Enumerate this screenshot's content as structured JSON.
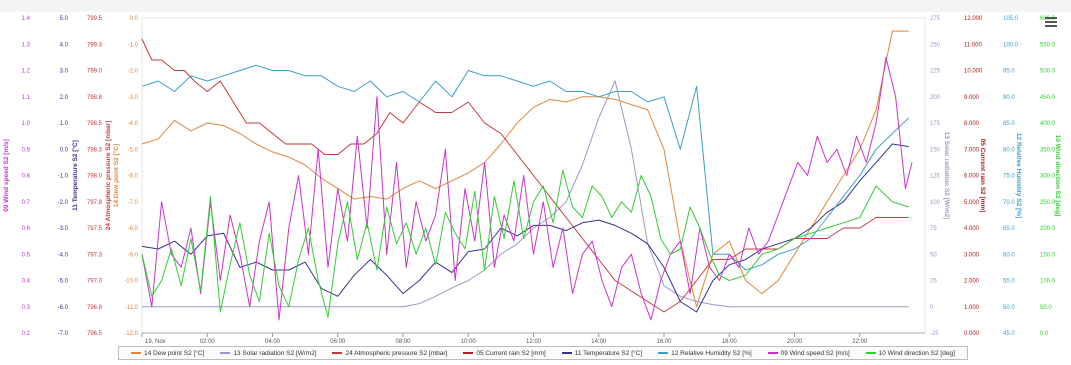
{
  "icons": {
    "menu": "hamburger-menu-icon"
  },
  "chart_data": {
    "type": "line",
    "x_start": "19. Nov",
    "x_ticks": [
      "19. Nov",
      "02:00",
      "04:00",
      "06:00",
      "08:00",
      "10:00",
      "12:00",
      "14:00",
      "16:00",
      "18:00",
      "20:00",
      "22:00"
    ],
    "x_range_hours": [
      0,
      24
    ],
    "axes": [
      {
        "id": "ws",
        "side": "left",
        "title": "09 Wind speed S2 [m/s]",
        "color": "#cc33cc",
        "min": 0.2,
        "max": 1.4,
        "ticks": [
          "1.4",
          "1.3",
          "1.2",
          "1.1",
          "1.0",
          "0.9",
          "0.8",
          "0.7",
          "0.6",
          "0.5",
          "0.4",
          "0.3",
          "0.2"
        ]
      },
      {
        "id": "temp",
        "side": "left",
        "title": "11 Temperature S2 [°C]",
        "color": "#33338f",
        "min": -7,
        "max": 5,
        "ticks": [
          "5.0",
          "4.0",
          "3.0",
          "2.0",
          "1.0",
          "0.0",
          "-1.0",
          "-2.0",
          "-3.0",
          "-4.0",
          "-5.0",
          "-6.0",
          "-7.0"
        ]
      },
      {
        "id": "atm",
        "side": "left",
        "title": "24 Atmospheric pressure S2 [mbar]",
        "color": "#c33a3a",
        "min": 796.5,
        "max": 799.5,
        "ticks": [
          "799.5",
          "799.3",
          "799.0",
          "798.8",
          "798.5",
          "798.3",
          "798.0",
          "797.8",
          "797.5",
          "797.3",
          "797.0",
          "796.8",
          "796.5"
        ]
      },
      {
        "id": "dew",
        "side": "left",
        "title": "14 Dew point S2 [°C]",
        "color": "#e0883a",
        "min": -12,
        "max": 0,
        "ticks": [
          "0.0",
          "-1.0",
          "-2.0",
          "-3.0",
          "-4.0",
          "-5.0",
          "-6.0",
          "-7.0",
          "-8.0",
          "-9.0",
          "-10.0",
          "-11.0",
          "-12.0"
        ]
      },
      {
        "id": "sol",
        "side": "right",
        "title": "13 Solar radiation S2 [W/m2]",
        "color": "#9a9ac8",
        "min": -25,
        "max": 275,
        "ticks": [
          "275",
          "250",
          "225",
          "200",
          "175",
          "150",
          "125",
          "100",
          "75",
          "50",
          "25",
          "0",
          "-25"
        ]
      },
      {
        "id": "rain",
        "side": "right",
        "title": "05 Current rain S2 [mm]",
        "color": "#aa2020",
        "min": 0,
        "max": 12,
        "ticks": [
          "12.000",
          "11.000",
          "10.000",
          "9.000",
          "8.000",
          "7.000",
          "6.000",
          "5.000",
          "4.000",
          "3.000",
          "2.000",
          "1.000",
          "0.000"
        ]
      },
      {
        "id": "rh",
        "side": "right",
        "title": "12 Relative Humidity S2 [%]",
        "color": "#3a9ec8",
        "min": 45,
        "max": 105,
        "ticks": [
          "105.0",
          "100.0",
          "95.0",
          "90.0",
          "85.0",
          "80.0",
          "75.0",
          "70.0",
          "65.0",
          "60.0",
          "55.0",
          "50.0",
          "45.0"
        ]
      },
      {
        "id": "wd",
        "side": "right",
        "title": "10 Wind direction S2 [deg]",
        "color": "#33cc33",
        "min": 0,
        "max": 600,
        "ticks": [
          "600.0",
          "550.0",
          "500.0",
          "450.0",
          "400.0",
          "350.0",
          "300.0",
          "250.0",
          "200.0",
          "150.0",
          "100.0",
          "50.0",
          "0.0"
        ]
      }
    ],
    "series": [
      {
        "name": "14 Dew point S2 [°C]",
        "axis": "dew",
        "color": "#e0883a",
        "x": [
          0,
          0.5,
          1,
          1.5,
          2,
          2.5,
          3,
          3.5,
          4,
          4.5,
          5,
          5.5,
          6,
          6.5,
          7,
          7.5,
          8,
          8.5,
          9,
          9.5,
          10,
          10.5,
          11,
          11.5,
          12,
          12.5,
          13,
          13.5,
          14,
          14.5,
          15,
          15.5,
          16,
          16.5,
          17,
          17.5,
          18,
          18.5,
          19,
          19.5,
          20,
          20.5,
          21,
          21.5,
          22,
          22.5,
          23,
          23.5
        ],
        "values": [
          -4.8,
          -4.6,
          -3.9,
          -4.3,
          -4.0,
          -4.1,
          -4.4,
          -4.8,
          -5.1,
          -5.3,
          -5.6,
          -6.1,
          -6.5,
          -6.9,
          -6.8,
          -6.9,
          -6.5,
          -6.2,
          -6.5,
          -6.2,
          -5.9,
          -5.5,
          -4.8,
          -4.0,
          -3.4,
          -3.1,
          -3.2,
          -3.0,
          -3.0,
          -3.1,
          -3.3,
          -3.5,
          -5.0,
          -8.5,
          -11.0,
          -9.0,
          -8.5,
          -10.0,
          -10.5,
          -10.0,
          -9.0,
          -8.0,
          -7.0,
          -6.0,
          -5.0,
          -3.5,
          -0.5,
          -0.5
        ]
      },
      {
        "name": "13 Solar radiation S2 [W/m2]",
        "axis": "sol",
        "color": "#9a9ac8",
        "x": [
          0,
          1,
          2,
          3,
          4,
          5,
          6,
          7,
          8,
          8.5,
          9,
          9.5,
          10,
          10.5,
          11,
          11.5,
          12,
          12.5,
          13,
          13.5,
          14,
          14.5,
          15,
          15.5,
          16,
          16.5,
          17,
          17.5,
          18,
          19,
          20,
          21,
          22,
          23,
          23.5
        ],
        "values": [
          0,
          0,
          0,
          0,
          0,
          0,
          0,
          0,
          0,
          3,
          10,
          18,
          25,
          35,
          50,
          60,
          75,
          85,
          100,
          135,
          180,
          215,
          150,
          60,
          20,
          10,
          5,
          2,
          0,
          0,
          0,
          0,
          0,
          0,
          0
        ]
      },
      {
        "name": "24 Atmospheric pressure S2 [mbar]",
        "axis": "atm",
        "color": "#c33a3a",
        "x": [
          0,
          0.3,
          0.6,
          1,
          1.3,
          1.6,
          2,
          2.4,
          2.8,
          3.2,
          3.6,
          4,
          4.4,
          4.8,
          5.2,
          5.6,
          6,
          6.4,
          6.8,
          7.2,
          7.6,
          8,
          8.5,
          9,
          9.5,
          10,
          10.5,
          11,
          11.5,
          12,
          12.5,
          13,
          13.5,
          14,
          14.5,
          15,
          15.5,
          16,
          16.5,
          17,
          17.5,
          18,
          18.5,
          19,
          19.5,
          20,
          20.5,
          21,
          21.5,
          22,
          22.5,
          23,
          23.5
        ],
        "values": [
          799.3,
          799.1,
          799.1,
          799.0,
          799.0,
          798.9,
          798.8,
          798.9,
          798.7,
          798.5,
          798.5,
          798.4,
          798.3,
          798.3,
          798.3,
          798.2,
          798.2,
          798.3,
          798.3,
          798.4,
          798.6,
          798.5,
          798.7,
          798.6,
          798.6,
          798.7,
          798.5,
          798.4,
          798.2,
          798.0,
          797.8,
          797.6,
          797.4,
          797.2,
          797.0,
          796.9,
          796.8,
          796.7,
          796.8,
          797.0,
          797.2,
          797.2,
          797.3,
          797.3,
          797.3,
          797.4,
          797.4,
          797.4,
          797.5,
          797.5,
          797.6,
          797.6,
          797.6
        ]
      },
      {
        "name": "05 Current rain S2 [mm]",
        "axis": "rain",
        "color": "#aa2020",
        "x": [
          0,
          2,
          4,
          6,
          8,
          10,
          12,
          14,
          16,
          16.5,
          17,
          17.5,
          18,
          20,
          22,
          23.5
        ],
        "values": [
          0,
          0,
          0,
          0,
          0,
          0,
          0,
          0,
          0,
          0,
          0,
          0,
          0,
          0,
          0,
          0
        ]
      },
      {
        "name": "11 Temperature S2 [°C]",
        "axis": "temp",
        "color": "#33338f",
        "x": [
          0,
          0.5,
          1,
          1.5,
          2,
          2.5,
          3,
          3.5,
          4,
          4.5,
          5,
          5.5,
          6,
          6.5,
          7,
          7.5,
          8,
          8.5,
          9,
          9.5,
          10,
          10.5,
          11,
          11.5,
          12,
          12.5,
          13,
          13.5,
          14,
          14.5,
          15,
          15.5,
          16,
          16.5,
          17,
          17.5,
          18,
          18.5,
          19,
          19.5,
          20,
          20.5,
          21,
          21.5,
          22,
          22.5,
          23,
          23.5
        ],
        "values": [
          -3.7,
          -3.8,
          -3.5,
          -4.0,
          -3.3,
          -3.2,
          -4.5,
          -4.3,
          -4.6,
          -4.6,
          -4.3,
          -5.3,
          -5.6,
          -4.8,
          -4.2,
          -4.8,
          -5.5,
          -5.0,
          -4.3,
          -4.7,
          -3.9,
          -3.8,
          -3.0,
          -3.3,
          -2.9,
          -2.9,
          -3.1,
          -2.8,
          -2.7,
          -2.9,
          -3.2,
          -3.6,
          -4.5,
          -5.8,
          -6.2,
          -5.0,
          -4.4,
          -4.2,
          -3.8,
          -3.6,
          -3.4,
          -3.0,
          -2.4,
          -2.0,
          -1.2,
          -0.5,
          0.2,
          0.1
        ]
      },
      {
        "name": "12 Relative Humidity S2 [%]",
        "axis": "rh",
        "color": "#3a9ec8",
        "x": [
          0,
          0.5,
          1,
          1.5,
          2,
          2.5,
          3,
          3.5,
          4,
          4.5,
          5,
          5.5,
          6,
          6.5,
          7,
          7.5,
          8,
          8.5,
          9,
          9.5,
          10,
          10.5,
          11,
          11.5,
          12,
          12.5,
          13,
          13.5,
          14,
          14.5,
          15,
          15.5,
          16,
          16.5,
          17,
          17.5,
          18,
          18.5,
          19,
          19.5,
          20,
          20.5,
          21,
          21.5,
          22,
          22.5,
          23,
          23.5
        ],
        "values": [
          92,
          93,
          91,
          94,
          93,
          94,
          95,
          96,
          95,
          95,
          94,
          94,
          92,
          91,
          93,
          90,
          91,
          89,
          93,
          90,
          95,
          94,
          94,
          93,
          92,
          93,
          91,
          91,
          90,
          91,
          91,
          89,
          90,
          80,
          92,
          60,
          60,
          57,
          58,
          60,
          61,
          63,
          67,
          71,
          75,
          80,
          83,
          86
        ]
      },
      {
        "name": "09 Wind speed S2 [m/s]",
        "axis": "ws",
        "color": "#cc33cc",
        "x": [
          0,
          0.3,
          0.6,
          0.9,
          1.2,
          1.5,
          1.8,
          2.1,
          2.4,
          2.7,
          3,
          3.3,
          3.6,
          3.9,
          4.2,
          4.5,
          4.8,
          5.1,
          5.4,
          5.7,
          6,
          6.3,
          6.6,
          6.9,
          7.2,
          7.5,
          7.8,
          8.1,
          8.4,
          8.7,
          9,
          9.3,
          9.6,
          9.9,
          10.2,
          10.5,
          10.8,
          11.1,
          11.4,
          11.7,
          12,
          12.3,
          12.6,
          12.9,
          13.2,
          13.5,
          13.8,
          14.1,
          14.4,
          14.7,
          15,
          15.3,
          15.6,
          15.9,
          16.2,
          16.5,
          16.8,
          17.1,
          17.4,
          17.7,
          18,
          18.3,
          18.6,
          18.9,
          19.2,
          19.5,
          19.8,
          20.1,
          20.4,
          20.7,
          21,
          21.3,
          21.6,
          21.9,
          22.2,
          22.5,
          22.8,
          23.1,
          23.4,
          23.6
        ],
        "values": [
          0.5,
          0.3,
          0.7,
          0.5,
          0.45,
          0.6,
          0.35,
          0.7,
          0.4,
          0.65,
          0.5,
          0.3,
          0.55,
          0.7,
          0.25,
          0.6,
          0.8,
          0.5,
          0.9,
          0.45,
          0.75,
          0.55,
          0.95,
          0.6,
          1.1,
          0.5,
          0.85,
          0.45,
          0.7,
          0.55,
          0.65,
          0.9,
          0.4,
          0.75,
          0.55,
          0.85,
          0.45,
          0.65,
          0.55,
          0.8,
          0.5,
          0.7,
          0.45,
          0.6,
          0.35,
          0.5,
          0.55,
          0.4,
          0.3,
          0.45,
          0.5,
          0.35,
          0.25,
          0.4,
          0.5,
          0.55,
          0.35,
          0.6,
          0.45,
          0.4,
          0.5,
          0.45,
          0.6,
          0.5,
          0.55,
          0.65,
          0.75,
          0.85,
          0.8,
          0.95,
          0.85,
          0.9,
          0.8,
          0.95,
          0.85,
          1.0,
          1.25,
          1.1,
          0.75,
          0.85
        ]
      },
      {
        "name": "10 Wind direction S2 [deg]",
        "axis": "wd",
        "color": "#33cc33",
        "x": [
          0,
          0.3,
          0.6,
          0.9,
          1.2,
          1.5,
          1.8,
          2.1,
          2.4,
          2.7,
          3,
          3.3,
          3.6,
          3.9,
          4.2,
          4.5,
          4.8,
          5.1,
          5.4,
          5.7,
          6,
          6.3,
          6.6,
          6.9,
          7.2,
          7.5,
          7.8,
          8.1,
          8.4,
          8.7,
          9,
          9.3,
          9.6,
          9.9,
          10.2,
          10.5,
          10.8,
          11.1,
          11.4,
          11.7,
          12,
          12.3,
          12.6,
          12.9,
          13.2,
          13.5,
          13.8,
          14.1,
          14.4,
          14.7,
          15,
          15.3,
          15.6,
          15.9,
          16.2,
          16.5,
          16.8,
          17.1,
          17.4,
          17.7,
          18,
          18.5,
          19,
          19.5,
          20,
          20.5,
          21,
          21.5,
          22,
          22.5,
          23,
          23.5
        ],
        "values": [
          150,
          70,
          100,
          160,
          90,
          180,
          80,
          260,
          40,
          130,
          210,
          110,
          60,
          190,
          90,
          50,
          140,
          200,
          100,
          30,
          170,
          250,
          140,
          210,
          120,
          240,
          170,
          210,
          150,
          200,
          130,
          230,
          190,
          160,
          270,
          120,
          260,
          180,
          290,
          180,
          250,
          280,
          210,
          310,
          240,
          220,
          280,
          260,
          220,
          250,
          230,
          300,
          260,
          180,
          150,
          160,
          240,
          200,
          150,
          110,
          100,
          110,
          150,
          160,
          180,
          190,
          200,
          210,
          220,
          280,
          250,
          240
        ]
      }
    ]
  }
}
